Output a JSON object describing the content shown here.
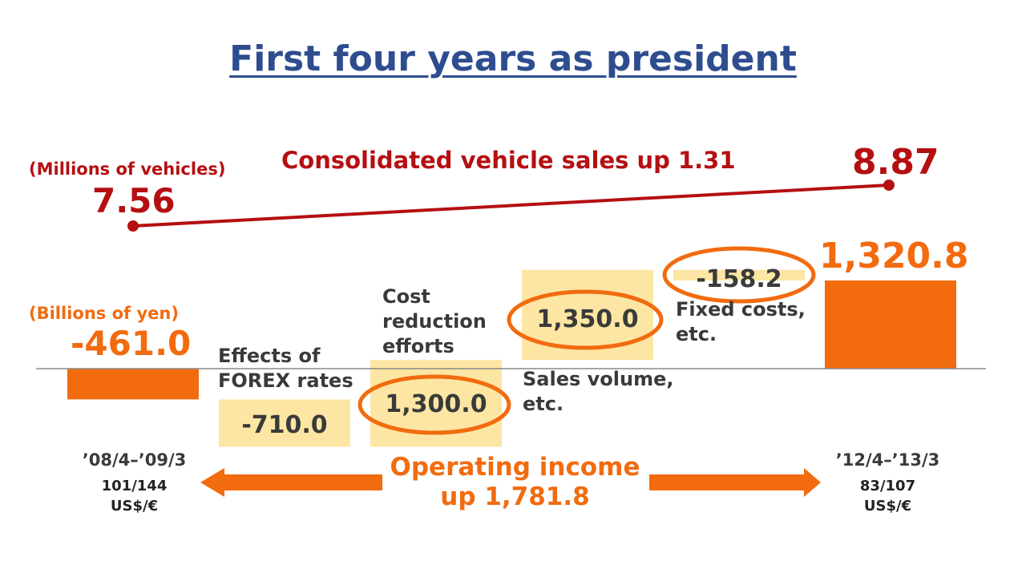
{
  "title": "First four years as president",
  "colors": {
    "title": "#2e4d8f",
    "vehicle_line": "#b50f12",
    "income_bar": "#f26b0f",
    "step_bar": "#fde6a3",
    "highlight_ring": "#f26b0f",
    "text": "#3a3a3a"
  },
  "vehicles": {
    "unit": "(Millions of vehicles)",
    "headline": "Consolidated vehicle sales up 1.31",
    "start_value": "7.56",
    "end_value": "8.87"
  },
  "income": {
    "unit": "(Billions of yen)",
    "start_value": "-461.0",
    "end_value": "1,320.8",
    "headline_line1": "Operating income",
    "headline_line2": "up 1,781.8"
  },
  "steps": [
    {
      "label": "Effects of FOREX rates",
      "value": "-710.0"
    },
    {
      "label": "Cost reduction efforts",
      "value": "1,300.0"
    },
    {
      "label": "Sales volume, etc.",
      "value": "1,350.0"
    },
    {
      "label": "Fixed costs, etc.",
      "value": "-158.2"
    }
  ],
  "periods": {
    "start": {
      "label": "’08/4–’09/3",
      "rates": "101/144",
      "currency": "US$/€"
    },
    "end": {
      "label": "’12/4–’13/3",
      "rates": "83/107",
      "currency": "US$/€"
    }
  },
  "chart_data": [
    {
      "type": "line",
      "x": [
        "’08/4–’09/3",
        "’12/4–’13/3"
      ],
      "series": [
        {
          "values": [
            7.56,
            8.87
          ]
        }
      ],
      "ylabel": "(Millions of vehicles)",
      "annotations": [
        "Consolidated vehicle sales up 1.31"
      ]
    },
    {
      "type": "bar",
      "categories": [
        "’08/4–’09/3",
        "Effects of FOREX rates",
        "Cost reduction efforts",
        "Sales volume, etc.",
        "Fixed costs, etc.",
        "’12/4–’13/3"
      ],
      "values": [
        -461.0,
        -710.0,
        1300.0,
        1350.0,
        -158.2,
        1320.8
      ],
      "waterfall": true,
      "ylabel": "(Billions of yen)",
      "annotations": [
        "Operating income up 1,781.8"
      ]
    }
  ]
}
